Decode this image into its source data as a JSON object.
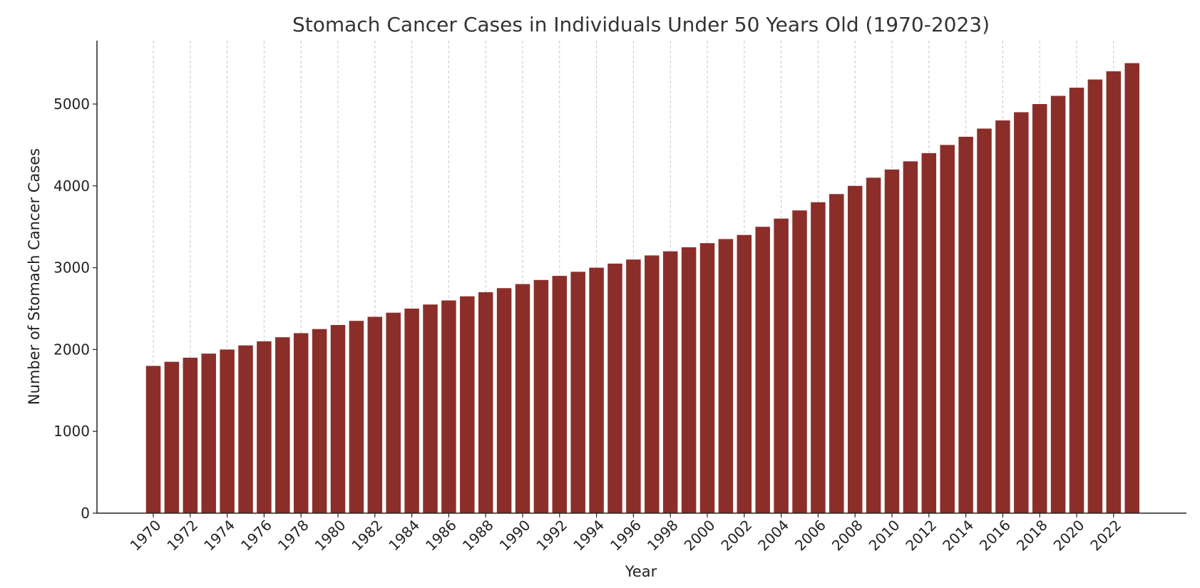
{
  "chart_data": {
    "type": "bar",
    "title": "Stomach Cancer Cases in Individuals Under 50 Years Old (1970-2023)",
    "xlabel": "Year",
    "ylabel": "Number of Stomach Cancer Cases",
    "categories": [
      1970,
      1971,
      1972,
      1973,
      1974,
      1975,
      1976,
      1977,
      1978,
      1979,
      1980,
      1981,
      1982,
      1983,
      1984,
      1985,
      1986,
      1987,
      1988,
      1989,
      1990,
      1991,
      1992,
      1993,
      1994,
      1995,
      1996,
      1997,
      1998,
      1999,
      2000,
      2001,
      2002,
      2003,
      2004,
      2005,
      2006,
      2007,
      2008,
      2009,
      2010,
      2011,
      2012,
      2013,
      2014,
      2015,
      2016,
      2017,
      2018,
      2019,
      2020,
      2021,
      2022,
      2023
    ],
    "values": [
      1800,
      1850,
      1900,
      1950,
      2000,
      2050,
      2100,
      2150,
      2200,
      2250,
      2300,
      2350,
      2400,
      2450,
      2500,
      2550,
      2600,
      2650,
      2700,
      2750,
      2800,
      2850,
      2900,
      2950,
      3000,
      3050,
      3100,
      3150,
      3200,
      3250,
      3300,
      3350,
      3400,
      3500,
      3600,
      3700,
      3800,
      3900,
      4000,
      4100,
      4200,
      4300,
      4400,
      4500,
      4600,
      4700,
      4800,
      4900,
      5000,
      5100,
      5200,
      5300,
      5400,
      5500
    ],
    "x_tick_labels": [
      "1970",
      "1972",
      "1974",
      "1976",
      "1978",
      "1980",
      "1982",
      "1984",
      "1986",
      "1988",
      "1990",
      "1992",
      "1994",
      "1996",
      "1998",
      "2000",
      "2002",
      "2004",
      "2006",
      "2008",
      "2010",
      "2012",
      "2014",
      "2016",
      "2018",
      "2020",
      "2022"
    ],
    "y_ticks": [
      0,
      1000,
      2000,
      3000,
      4000,
      5000
    ],
    "ylim": [
      0,
      5775
    ],
    "grid": "vertical dashed at labeled years",
    "bar_color": "#8b2e2a",
    "grid_color": "#c8c8c8",
    "axis_color": "#222222"
  }
}
